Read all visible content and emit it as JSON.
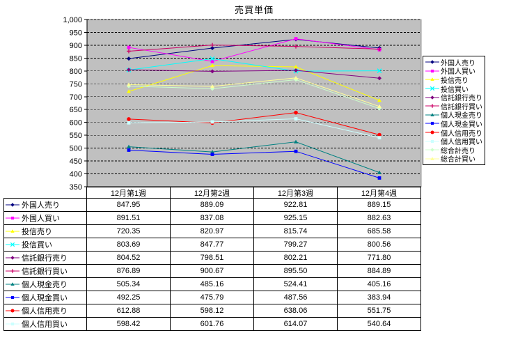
{
  "chart_data": {
    "type": "line",
    "title": "売買単価",
    "categories": [
      "12月第1週",
      "12月第2週",
      "12月第3週",
      "12月第4週"
    ],
    "ylim": [
      350,
      1000
    ],
    "ytick_step": 50,
    "grid": "dashed-horizontal",
    "legend_position": "right",
    "plot_bg": "#C0C0C0",
    "table_rows": 10,
    "series": [
      {
        "name": "外国人売り",
        "color": "#000080",
        "marker": "diamond",
        "values": [
          847.95,
          889.09,
          922.81,
          889.15
        ]
      },
      {
        "name": "外国人買い",
        "color": "#FF00FF",
        "marker": "square",
        "values": [
          891.51,
          837.08,
          925.15,
          882.63
        ]
      },
      {
        "name": "投信売り",
        "color": "#FFFF00",
        "marker": "triangle",
        "values": [
          720.35,
          820.97,
          815.74,
          685.58
        ]
      },
      {
        "name": "投信買い",
        "color": "#00FFFF",
        "marker": "x",
        "values": [
          803.69,
          847.77,
          799.27,
          800.56
        ]
      },
      {
        "name": "信託銀行売り",
        "color": "#800080",
        "marker": "diamond",
        "values": [
          804.52,
          798.51,
          802.21,
          771.8
        ]
      },
      {
        "name": "信託銀行買い",
        "color": "#CC0066",
        "marker": "plus",
        "values": [
          876.89,
          900.67,
          895.5,
          884.89
        ]
      },
      {
        "name": "個人現金売り",
        "color": "#008080",
        "marker": "triangle",
        "values": [
          505.34,
          485.16,
          524.41,
          405.16
        ]
      },
      {
        "name": "個人現金買い",
        "color": "#0000FF",
        "marker": "square",
        "values": [
          492.25,
          475.79,
          487.56,
          383.94
        ]
      },
      {
        "name": "個人信用売り",
        "color": "#FF0000",
        "marker": "circle",
        "values": [
          612.88,
          598.12,
          638.06,
          551.75
        ]
      },
      {
        "name": "個人信用買い",
        "color": "#CCFFFF",
        "marker": "square",
        "values": [
          598.42,
          601.76,
          614.07,
          540.64
        ]
      },
      {
        "name": "総合計売り",
        "color": "#CCFFCC",
        "marker": "diamond",
        "values": [
          741,
          731,
          766,
          654
        ]
      },
      {
        "name": "総合計買い",
        "color": "#FFFF99",
        "marker": "triangle",
        "values": [
          747,
          740,
          773,
          662
        ]
      }
    ]
  }
}
